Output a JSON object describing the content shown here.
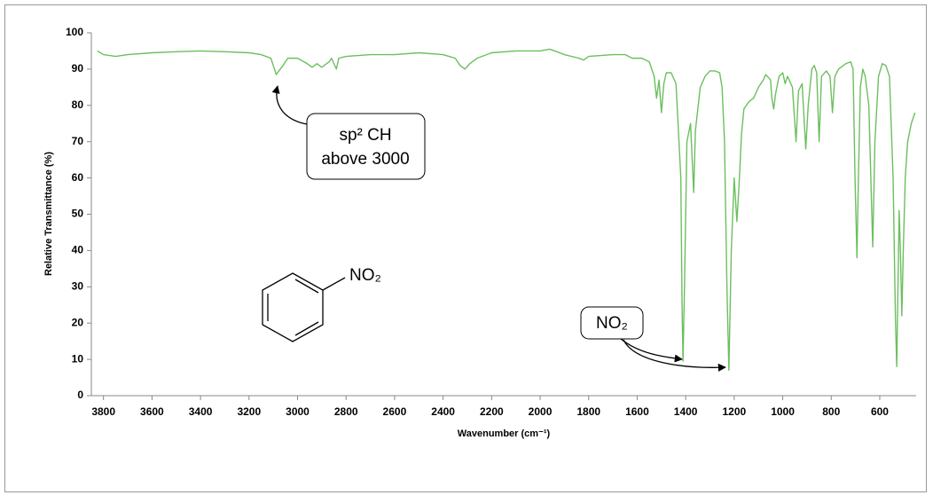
{
  "chart_data": {
    "type": "line",
    "x_label": "Wavenumber (cm⁻¹)",
    "y_label": "Relative Transmittance (%)",
    "xlim": [
      3850,
      450
    ],
    "ylim": [
      0,
      100
    ],
    "xticks": [
      3800,
      3600,
      3400,
      3200,
      3000,
      2800,
      2600,
      2400,
      2200,
      2000,
      1800,
      1600,
      1400,
      1200,
      1000,
      800,
      600
    ],
    "yticks": [
      0,
      10,
      20,
      30,
      40,
      50,
      60,
      70,
      80,
      90,
      100
    ],
    "color": "#6cbf5f",
    "x": [
      3825,
      3800,
      3750,
      3700,
      3600,
      3500,
      3400,
      3300,
      3200,
      3150,
      3110,
      3100,
      3088,
      3060,
      3040,
      3000,
      2960,
      2940,
      2920,
      2900,
      2870,
      2860,
      2840,
      2830,
      2800,
      2700,
      2600,
      2500,
      2400,
      2350,
      2330,
      2310,
      2290,
      2260,
      2200,
      2100,
      2000,
      1960,
      1900,
      1840,
      1820,
      1800,
      1700,
      1650,
      1620,
      1580,
      1550,
      1530,
      1520,
      1510,
      1500,
      1490,
      1480,
      1460,
      1440,
      1420,
      1415,
      1411,
      1405,
      1395,
      1380,
      1367,
      1360,
      1340,
      1320,
      1300,
      1280,
      1260,
      1250,
      1240,
      1230,
      1222,
      1212,
      1200,
      1189,
      1180,
      1170,
      1160,
      1140,
      1120,
      1100,
      1080,
      1070,
      1050,
      1045,
      1037,
      1030,
      1015,
      1000,
      990,
      980,
      960,
      945,
      935,
      920,
      905,
      895,
      880,
      870,
      860,
      850,
      840,
      820,
      805,
      795,
      785,
      770,
      740,
      720,
      710,
      702,
      694,
      688,
      680,
      670,
      660,
      645,
      629,
      620,
      605,
      590,
      575,
      560,
      545,
      535,
      530,
      525,
      520,
      515,
      509,
      503,
      495,
      485,
      470,
      455
    ],
    "values": [
      95,
      94,
      93.5,
      94,
      94.5,
      94.8,
      95,
      94.8,
      94.5,
      94,
      93,
      91,
      88.5,
      91,
      93,
      93,
      91.5,
      90.5,
      91.5,
      90.5,
      92,
      93,
      90,
      93,
      93.5,
      94,
      94,
      94.5,
      94,
      93,
      91,
      90,
      91.5,
      93,
      94.5,
      95,
      95,
      95.5,
      94,
      93,
      92.5,
      93.5,
      94,
      94,
      93,
      93,
      92,
      88,
      82,
      87,
      78,
      86,
      89,
      89,
      86,
      60,
      25,
      9.5,
      30,
      70,
      75,
      56,
      73,
      85,
      88,
      89.5,
      89.5,
      89,
      85,
      70,
      30,
      7,
      40,
      60,
      48,
      58,
      72,
      79,
      81,
      82,
      85,
      87,
      88.5,
      87,
      82,
      79,
      83,
      88,
      89,
      86,
      88,
      85,
      70,
      84,
      86,
      68,
      80,
      90,
      91,
      89,
      70,
      88,
      89.5,
      88,
      78,
      88,
      90,
      91.5,
      92,
      90,
      60,
      38,
      60,
      85,
      90,
      88,
      80,
      41,
      70,
      88,
      91.5,
      91,
      88,
      60,
      20,
      8,
      30,
      51,
      40,
      22,
      40,
      60,
      70,
      75,
      78
    ],
    "annotations": [
      {
        "lines": [
          "sp² CH",
          "above 3000"
        ]
      },
      {
        "lines": [
          "NO₂"
        ]
      }
    ],
    "structure_label": "NO₂"
  }
}
